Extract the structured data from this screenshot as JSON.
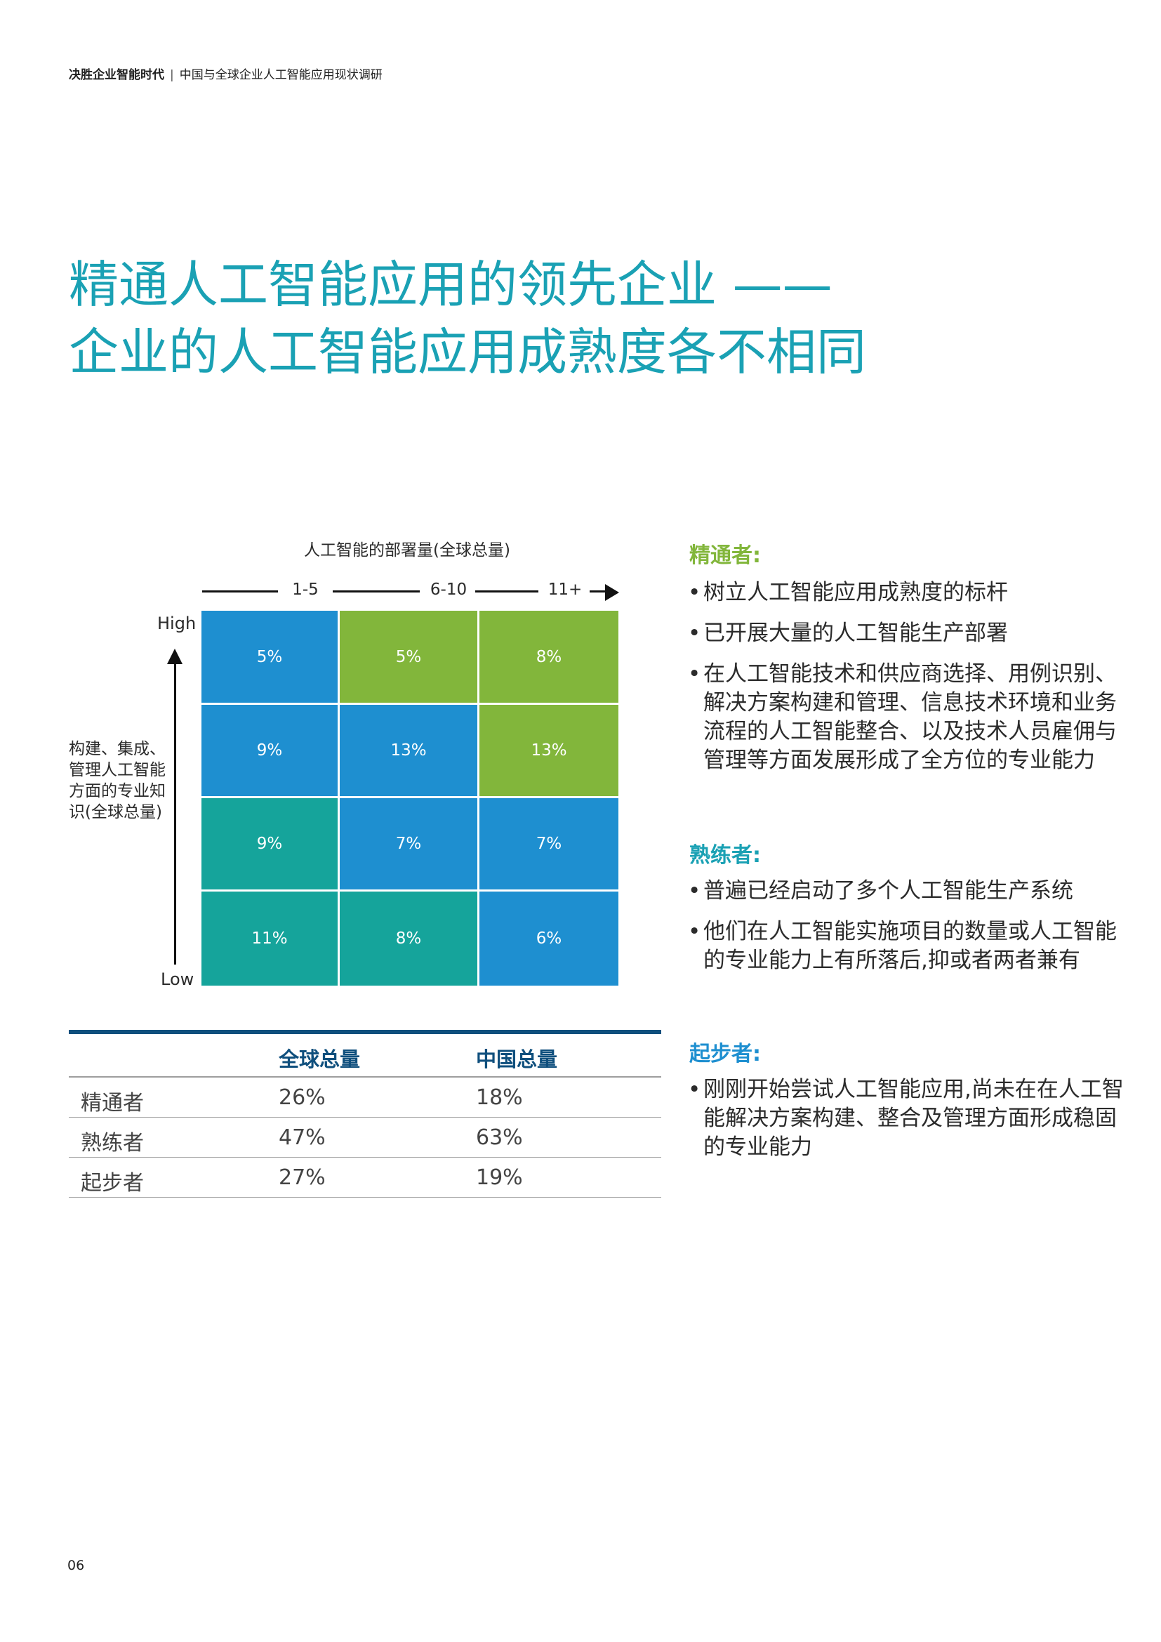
{
  "header": {
    "title_bold": "决胜企业智能时代",
    "separator": "|",
    "subtitle": "中国与全球企业人工智能应用现状调研"
  },
  "headline": {
    "line1": "精通人工智能应用的领先企业 ——",
    "line2": "企业的人工智能应用成熟度各不相同"
  },
  "matrix": {
    "x_axis_title": "人工智能的部署量(全球总量)",
    "x_ticks": [
      "1-5",
      "6-10",
      "11+"
    ],
    "y_high": "High",
    "y_low": "Low",
    "y_axis_title": "构建、集成、管理人工智能方面的专业知识(全球总量)",
    "colors": {
      "blue": "#1e8fd0",
      "green": "#82b63b",
      "teal": "#15a49b"
    },
    "rows": [
      [
        {
          "value": "5%",
          "color": "blue"
        },
        {
          "value": "5%",
          "color": "green"
        },
        {
          "value": "8%",
          "color": "green"
        }
      ],
      [
        {
          "value": "9%",
          "color": "blue"
        },
        {
          "value": "13%",
          "color": "blue"
        },
        {
          "value": "13%",
          "color": "green"
        }
      ],
      [
        {
          "value": "9%",
          "color": "teal"
        },
        {
          "value": "7%",
          "color": "blue"
        },
        {
          "value": "7%",
          "color": "blue"
        }
      ],
      [
        {
          "value": "11%",
          "color": "teal"
        },
        {
          "value": "8%",
          "color": "teal"
        },
        {
          "value": "6%",
          "color": "blue"
        }
      ]
    ]
  },
  "summary_table": {
    "headers": [
      "",
      "全球总量",
      "中国总量"
    ],
    "rows": [
      [
        "精通者",
        "26%",
        "18%"
      ],
      [
        "熟练者",
        "47%",
        "63%"
      ],
      [
        "起步者",
        "27%",
        "19%"
      ]
    ]
  },
  "sections": [
    {
      "title": "精通者:",
      "color": "#82b63b",
      "bullets": [
        "树立人工智能应用成熟度的标杆",
        "已开展大量的人工智能生产部署",
        "在人工智能技术和供应商选择、用例识别、解决方案构建和管理、信息技术环境和业务流程的人工智能整合、以及技术人员雇佣与管理等方面发展形成了全方位的专业能力"
      ]
    },
    {
      "title": "熟练者:",
      "color": "#1aa1b4",
      "bullets": [
        "普遍已经启动了多个人工智能生产系统",
        "他们在人工智能实施项目的数量或人工智能的专业能力上有所落后,抑或者两者兼有"
      ]
    },
    {
      "title": "起步者:",
      "color": "#1e8fd0",
      "bullets": [
        "刚刚开始尝试人工智能应用,尚未在在人工智能解决方案构建、整合及管理方面形成稳固的专业能力"
      ]
    }
  ],
  "page_number": "06"
}
